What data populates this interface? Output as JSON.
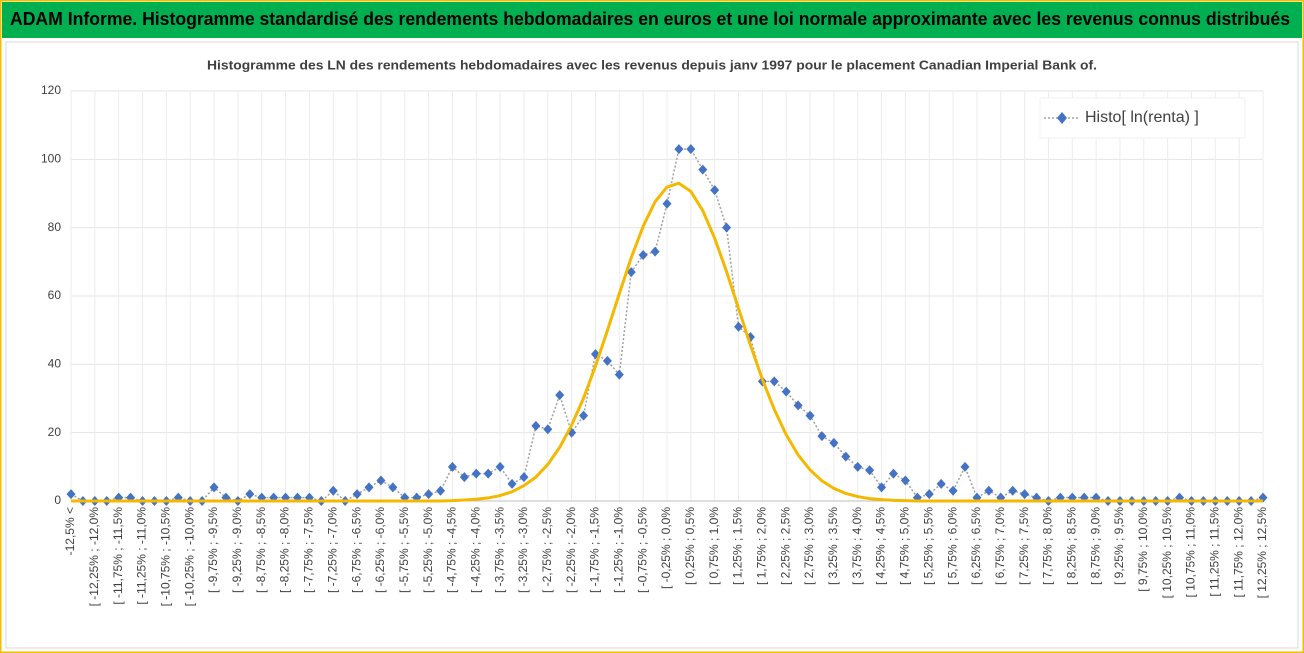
{
  "header": {
    "title": "ADAM Informe. Histogramme standardisé des rendements hebdomadaires en euros et une loi normale approximante avec les revenus connus distribués"
  },
  "chart_data": {
    "type": "line",
    "title": "Histogramme des LN des rendements hebdomadaires avec les revenus depuis janv 1997 pour le placement Canadian Imperial Bank of.",
    "categories": [
      "-12,5% <",
      null,
      "[ -12,25% ; -12,0%",
      null,
      "[ -11,75% ; -11,5%",
      null,
      "[ -11,25% ; -11,0%",
      null,
      "[ -10,75% ; -10,5%",
      null,
      "[ -10,25% ; -10,0%",
      null,
      "[ -9,75% ; -9,5%",
      null,
      "[ -9,25% ; -9,0%",
      null,
      "[ -8,75% ; -8,5%",
      null,
      "[ -8,25% ; -8,0%",
      null,
      "[ -7,75% ; -7,5%",
      null,
      "[ -7,25% ; -7,0%",
      null,
      "[ -6,75% ; -6,5%",
      null,
      "[ -6,25% ; -6,0%",
      null,
      "[ -5,75% ; -5,5%",
      null,
      "[ -5,25% ; -5,0%",
      null,
      "[ -4,75% ; -4,5%",
      null,
      "[ -4,25% ; -4,0%",
      null,
      "[ -3,75% ; -3,5%",
      null,
      "[ -3,25% ; -3,0%",
      null,
      "[ -2,75% ; -2,5%",
      null,
      "[ -2,25% ; -2,0%",
      null,
      "[ -1,75% ; -1,5%",
      null,
      "[ -1,25% ; -1,0%",
      null,
      "[ -0,75% ; -0,5%",
      null,
      "[ -0,25% ; 0,0%",
      null,
      "[ 0,25% ; 0,5%",
      null,
      "[ 0,75% ; 1,0%",
      null,
      "[ 1,25% ; 1,5%",
      null,
      "[ 1,75% ; 2,0%",
      null,
      "[ 2,25% ; 2,5%",
      null,
      "[ 2,75% ; 3,0%",
      null,
      "[ 3,25% ; 3,5%",
      null,
      "[ 3,75% ; 4,0%",
      null,
      "[ 4,25% ; 4,5%",
      null,
      "[ 4,75% ; 5,0%",
      null,
      "[ 5,25% ; 5,5%",
      null,
      "[ 5,75% ; 6,0%",
      null,
      "[ 6,25% ; 6,5%",
      null,
      "[ 6,75% ; 7,0%",
      null,
      "[ 7,25% ; 7,5%",
      null,
      "[ 7,75% ; 8,0%",
      null,
      "[ 8,25% ; 8,5%",
      null,
      "[ 8,75% ; 9,0%",
      null,
      "[ 9,25% ; 9,5%",
      null,
      "[ 9,75% ; 10,0%",
      null,
      "[ 10,25% ; 10,5%",
      null,
      "[ 10,75% ; 11,0%",
      null,
      "[ 11,25% ; 11,5%",
      null,
      "[ 11,75% ; 12,0%",
      null,
      "[ 12,25% ; 12,5%"
    ],
    "series": [
      {
        "name": "Histo[ ln(renta) ]",
        "color": "#4472c4",
        "values": [
          2,
          0,
          0,
          0,
          1,
          1,
          0,
          0,
          0,
          1,
          0,
          0,
          4,
          1,
          0,
          2,
          1,
          1,
          1,
          1,
          1,
          0,
          3,
          0,
          2,
          4,
          6,
          4,
          1,
          1,
          2,
          3,
          10,
          7,
          8,
          8,
          10,
          5,
          7,
          22,
          21,
          31,
          20,
          25,
          43,
          41,
          37,
          67,
          72,
          73,
          87,
          103,
          103,
          97,
          91,
          80,
          51,
          48,
          35,
          35,
          32,
          28,
          25,
          19,
          17,
          13,
          10,
          9,
          4,
          8,
          6,
          1,
          2,
          5,
          3,
          10,
          1,
          3,
          1,
          3,
          2,
          1,
          0,
          1,
          1,
          1,
          1,
          0,
          0,
          0,
          0,
          0,
          0,
          1,
          0,
          0,
          0,
          0,
          0,
          0,
          1
        ]
      },
      {
        "color": "#f5b800",
        "values": [
          0,
          0,
          0,
          0,
          0,
          0,
          0,
          0,
          0,
          0,
          0,
          0,
          0,
          0,
          0,
          0,
          0,
          0,
          0,
          0,
          0,
          0,
          0,
          0,
          0,
          0,
          0,
          0,
          0,
          0,
          0,
          0,
          0.1,
          0.3,
          0.5,
          0.9,
          1.6,
          2.7,
          4.5,
          7,
          10.7,
          15.7,
          22.2,
          30.1,
          39.5,
          49.9,
          60.7,
          71.2,
          80.4,
          87.6,
          91.9,
          93,
          90.6,
          85,
          76.9,
          67.1,
          56.4,
          45.6,
          35.6,
          26.8,
          19.4,
          13.5,
          9.1,
          5.9,
          3.7,
          2.2,
          1.3,
          0.7,
          0.4,
          0.2,
          0.1,
          0,
          0,
          0,
          0,
          0,
          0,
          0,
          0,
          0,
          0,
          0,
          0,
          0,
          0,
          0,
          0,
          0,
          0,
          0,
          0,
          0,
          0,
          0,
          0,
          0,
          0,
          0,
          0,
          0,
          0
        ]
      }
    ],
    "ylim": [
      0,
      120
    ],
    "yticks": [
      0,
      20,
      40,
      60,
      80,
      100,
      120
    ],
    "grid": true,
    "legend": "upper right"
  }
}
